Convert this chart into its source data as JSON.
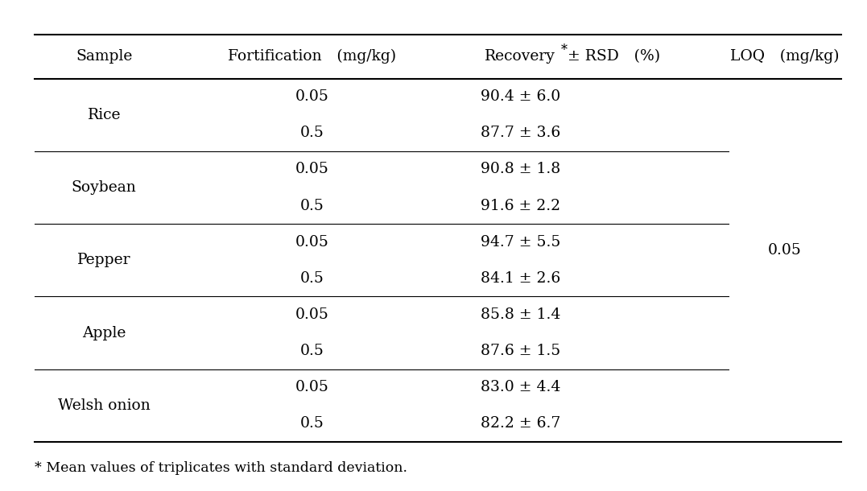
{
  "headers": [
    "Sample",
    "Fortification (mg/kg)",
    "Recovery* ± RSD (%)",
    "LOQ (mg/kg)"
  ],
  "header_superscript": "*",
  "samples": [
    {
      "name": "Rice",
      "rows": [
        {
          "fortification": "0.05",
          "recovery": "90.4 ± 6.0"
        },
        {
          "fortification": "0.5",
          "recovery": "87.7 ± 3.6"
        }
      ]
    },
    {
      "name": "Soybean",
      "rows": [
        {
          "fortification": "0.05",
          "recovery": "90.8 ± 1.8"
        },
        {
          "fortification": "0.5",
          "recovery": "91.6 ± 2.2"
        }
      ]
    },
    {
      "name": "Pepper",
      "rows": [
        {
          "fortification": "0.05",
          "recovery": "94.7 ± 5.5"
        },
        {
          "fortification": "0.5",
          "recovery": "84.1 ± 2.6"
        }
      ]
    },
    {
      "name": "Apple",
      "rows": [
        {
          "fortification": "0.05",
          "recovery": "85.8 ± 1.4"
        },
        {
          "fortification": "0.5",
          "recovery": "87.6 ± 1.5"
        }
      ]
    },
    {
      "name": "Welsh onion",
      "rows": [
        {
          "fortification": "0.05",
          "recovery": "83.0 ± 4.4"
        },
        {
          "fortification": "0.5",
          "recovery": "82.2 ± 6.7"
        }
      ]
    }
  ],
  "loq": "0.05",
  "footnote": "* Mean values of triplicates with standard deviation.",
  "bg_color": "#ffffff",
  "text_color": "#000000",
  "font_size": 13.5,
  "header_font_size": 13.5
}
